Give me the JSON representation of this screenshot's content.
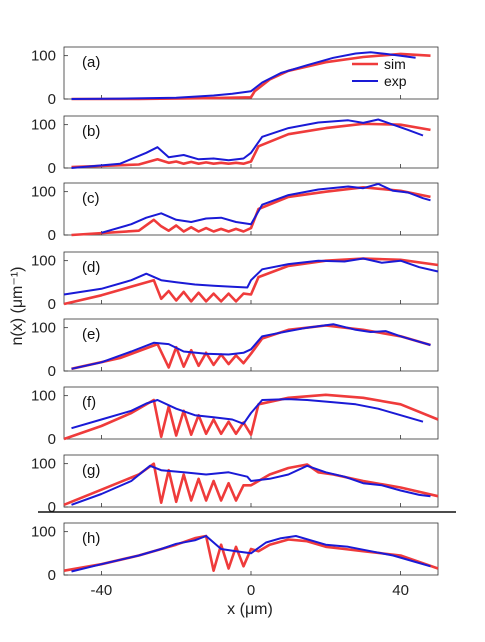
{
  "chart_data": {
    "type": "line",
    "xlabel": "x (μm)",
    "ylabel": "n(x) (μm⁻¹)",
    "xlim": [
      -50,
      50
    ],
    "ylim": [
      0,
      120
    ],
    "xticks": [
      -40,
      0,
      40
    ],
    "xtick_labels": [
      "-40",
      "0",
      "40"
    ],
    "yticks": [
      0,
      100
    ],
    "ytick_labels": [
      "0",
      "100"
    ],
    "grid": false,
    "legend": {
      "position": "top-right",
      "panel": 0
    },
    "colors": {
      "sim": "#ef3b3b",
      "exp": "#1a1ad6"
    },
    "series_names": [
      "sim",
      "exp"
    ],
    "panels": [
      {
        "label": "(a)",
        "sim": {
          "x": [
            -48,
            -30,
            -10,
            0,
            1,
            5,
            10,
            20,
            30,
            40,
            48
          ],
          "y": [
            0,
            0,
            2,
            4,
            18,
            45,
            65,
            85,
            97,
            104,
            100
          ]
        },
        "exp": {
          "x": [
            -48,
            -35,
            -20,
            -10,
            -5,
            0,
            3,
            8,
            15,
            22,
            28,
            32,
            36,
            40,
            44
          ],
          "y": [
            0,
            1,
            3,
            8,
            12,
            18,
            38,
            60,
            78,
            95,
            105,
            108,
            104,
            100,
            95
          ]
        }
      },
      {
        "label": "(b)",
        "sim": {
          "x": [
            -48,
            -30,
            -25,
            -22,
            -20,
            -18,
            -16,
            -14,
            -12,
            -10,
            -8,
            -6,
            -4,
            -2,
            0,
            2,
            10,
            20,
            30,
            40,
            48
          ],
          "y": [
            2,
            8,
            20,
            12,
            15,
            10,
            14,
            10,
            13,
            10,
            12,
            10,
            12,
            10,
            15,
            50,
            78,
            92,
            102,
            100,
            88
          ]
        },
        "exp": {
          "x": [
            -48,
            -35,
            -28,
            -25,
            -22,
            -18,
            -14,
            -10,
            -6,
            -2,
            0,
            3,
            10,
            18,
            26,
            30,
            34,
            38,
            42,
            46
          ],
          "y": [
            0,
            10,
            35,
            48,
            25,
            30,
            20,
            22,
            18,
            22,
            35,
            72,
            92,
            105,
            110,
            104,
            112,
            100,
            88,
            75
          ]
        }
      },
      {
        "label": "(c)",
        "sim": {
          "x": [
            -48,
            -30,
            -26,
            -24,
            -22,
            -20,
            -18,
            -16,
            -14,
            -12,
            -10,
            -8,
            -6,
            -4,
            -2,
            0,
            2,
            10,
            20,
            30,
            40,
            48
          ],
          "y": [
            0,
            10,
            35,
            20,
            10,
            22,
            8,
            18,
            8,
            16,
            8,
            14,
            8,
            14,
            8,
            16,
            60,
            88,
            100,
            110,
            102,
            88
          ]
        },
        "exp": {
          "x": [
            -40,
            -32,
            -28,
            -24,
            -20,
            -16,
            -12,
            -8,
            -4,
            0,
            3,
            10,
            18,
            26,
            30,
            34,
            38,
            42,
            46,
            48
          ],
          "y": [
            5,
            25,
            40,
            50,
            35,
            30,
            38,
            40,
            30,
            25,
            70,
            92,
            105,
            112,
            108,
            118,
            102,
            98,
            85,
            80
          ]
        }
      },
      {
        "label": "(d)",
        "sim": {
          "x": [
            -50,
            -40,
            -30,
            -26,
            -24,
            -22,
            -20,
            -18,
            -16,
            -14,
            -12,
            -10,
            -8,
            -6,
            -4,
            -2,
            0,
            2,
            10,
            20,
            30,
            40,
            50
          ],
          "y": [
            0,
            20,
            45,
            55,
            12,
            30,
            8,
            28,
            6,
            26,
            6,
            24,
            6,
            24,
            6,
            24,
            22,
            62,
            88,
            100,
            105,
            102,
            90
          ]
        },
        "exp": {
          "x": [
            -50,
            -40,
            -32,
            -28,
            -24,
            -20,
            -15,
            -10,
            -5,
            -1,
            0,
            3,
            10,
            18,
            25,
            30,
            35,
            40,
            45,
            50
          ],
          "y": [
            22,
            35,
            55,
            70,
            55,
            50,
            45,
            42,
            40,
            38,
            55,
            80,
            92,
            100,
            98,
            105,
            95,
            100,
            85,
            75
          ]
        }
      },
      {
        "label": "(e)",
        "sim": {
          "x": [
            -48,
            -35,
            -25,
            -22,
            -20,
            -18,
            -16,
            -14,
            -12,
            -10,
            -8,
            -6,
            -4,
            -2,
            0,
            3,
            10,
            20,
            30,
            40,
            48
          ],
          "y": [
            5,
            30,
            62,
            8,
            55,
            10,
            48,
            12,
            42,
            14,
            38,
            16,
            36,
            18,
            40,
            75,
            95,
            105,
            95,
            80,
            60
          ]
        },
        "exp": {
          "x": [
            -48,
            -40,
            -32,
            -26,
            -22,
            -18,
            -12,
            -6,
            -2,
            0,
            3,
            10,
            15,
            22,
            28,
            32,
            36,
            40,
            44,
            48
          ],
          "y": [
            5,
            20,
            45,
            65,
            62,
            45,
            40,
            38,
            42,
            50,
            80,
            92,
            100,
            108,
            95,
            90,
            92,
            80,
            70,
            60
          ]
        }
      },
      {
        "label": "(f)",
        "sim": {
          "x": [
            -50,
            -40,
            -32,
            -26,
            -24,
            -22,
            -20,
            -18,
            -16,
            -14,
            -12,
            -10,
            -8,
            -6,
            -4,
            -2,
            0,
            2,
            10,
            20,
            30,
            40,
            50
          ],
          "y": [
            0,
            30,
            60,
            90,
            5,
            75,
            8,
            65,
            10,
            55,
            12,
            45,
            12,
            40,
            12,
            38,
            10,
            80,
            95,
            102,
            95,
            80,
            45
          ]
        },
        "exp": {
          "x": [
            -48,
            -40,
            -32,
            -28,
            -25,
            -20,
            -15,
            -10,
            -5,
            -2,
            0,
            3,
            10,
            15,
            22,
            28,
            34,
            40,
            46
          ],
          "y": [
            25,
            45,
            65,
            82,
            90,
            70,
            55,
            50,
            45,
            35,
            60,
            90,
            92,
            90,
            85,
            80,
            70,
            55,
            40
          ]
        }
      },
      {
        "label": "(g)",
        "sim": {
          "x": [
            -50,
            -40,
            -30,
            -26,
            -24,
            -22,
            -20,
            -18,
            -16,
            -14,
            -12,
            -10,
            -8,
            -6,
            -4,
            -2,
            0,
            5,
            10,
            15,
            18,
            22,
            30,
            40,
            50
          ],
          "y": [
            5,
            40,
            75,
            100,
            10,
            85,
            12,
            75,
            15,
            65,
            15,
            60,
            15,
            55,
            15,
            50,
            50,
            75,
            90,
            98,
            80,
            75,
            60,
            45,
            25
          ]
        },
        "exp": {
          "x": [
            -48,
            -40,
            -32,
            -27,
            -24,
            -18,
            -12,
            -6,
            -1,
            0,
            5,
            10,
            15,
            20,
            25,
            30,
            35,
            40,
            45,
            48
          ],
          "y": [
            5,
            30,
            60,
            95,
            85,
            80,
            75,
            80,
            70,
            60,
            65,
            75,
            95,
            80,
            70,
            55,
            50,
            38,
            28,
            25
          ]
        }
      },
      {
        "label": "(h)",
        "sim": {
          "x": [
            -50,
            -40,
            -30,
            -20,
            -15,
            -12,
            -10,
            -8,
            -6,
            -4,
            -2,
            0,
            2,
            5,
            10,
            15,
            20,
            25,
            30,
            40,
            50
          ],
          "y": [
            10,
            25,
            45,
            70,
            85,
            90,
            10,
            70,
            15,
            65,
            20,
            60,
            55,
            70,
            82,
            78,
            65,
            60,
            55,
            45,
            15
          ]
        },
        "exp": {
          "x": [
            -48,
            -40,
            -30,
            -24,
            -20,
            -15,
            -12,
            -8,
            -4,
            0,
            4,
            8,
            12,
            16,
            20,
            26,
            32,
            38,
            44,
            48
          ],
          "y": [
            8,
            25,
            45,
            60,
            72,
            80,
            90,
            60,
            55,
            50,
            75,
            85,
            90,
            80,
            70,
            65,
            55,
            45,
            30,
            20
          ]
        }
      }
    ]
  }
}
